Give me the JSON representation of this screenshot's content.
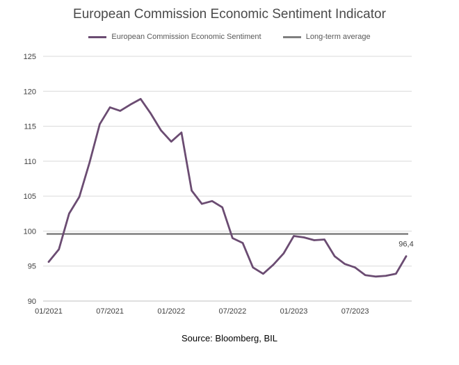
{
  "chart_data": {
    "type": "line",
    "title": "European Commission Economic Sentiment Indicator",
    "source": "Source: Bloomberg, BIL",
    "ylim": [
      90,
      125
    ],
    "y_ticks": [
      "90",
      "95",
      "100",
      "105",
      "110",
      "115",
      "120",
      "125"
    ],
    "x_ticks": [
      {
        "label": "01/2021",
        "index": 0
      },
      {
        "label": "07/2021",
        "index": 6
      },
      {
        "label": "01/2022",
        "index": 12
      },
      {
        "label": "07/2022",
        "index": 18
      },
      {
        "label": "01/2023",
        "index": 24
      },
      {
        "label": "07/2023",
        "index": 30
      }
    ],
    "grid": "horizontal",
    "legend_position": "top",
    "series": [
      {
        "name": "European Commission Economic Sentiment",
        "color": "#6b4c72",
        "values": [
          95.6,
          97.4,
          102.5,
          104.9,
          109.8,
          115.3,
          117.7,
          117.2,
          118.1,
          118.9,
          116.8,
          114.4,
          112.8,
          114.1,
          105.8,
          103.9,
          104.3,
          103.4,
          99.0,
          98.3,
          94.8,
          93.9,
          95.2,
          96.8,
          99.3,
          99.1,
          98.7,
          98.8,
          96.4,
          95.3,
          94.8,
          93.7,
          93.5,
          93.6,
          93.9,
          96.4
        ],
        "end_label": "96,4"
      },
      {
        "name": "Long-term average",
        "color": "#7f7f7f",
        "value": 99.6
      }
    ]
  }
}
